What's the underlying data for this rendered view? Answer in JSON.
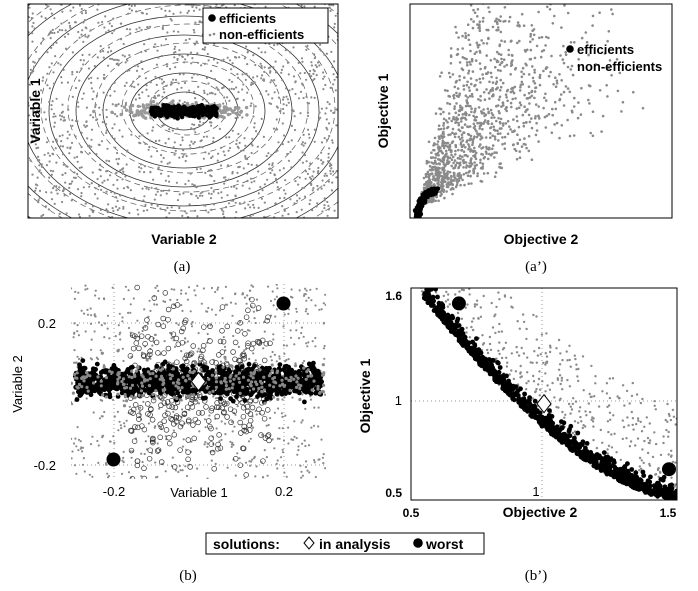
{
  "chart_data": [
    {
      "type": "scatter",
      "id": "a",
      "caption": "(a)",
      "xlabel": "Variable 2",
      "ylabel": "Variable 1",
      "legend": {
        "placement": "top-right",
        "entries": [
          "efficients",
          "non-efficients"
        ]
      },
      "contours": "concentric-ellipses",
      "series": [
        {
          "name": "efficients",
          "description": "dense horizontal band at center"
        },
        {
          "name": "non-efficients",
          "description": "uniform spread over plot area"
        }
      ]
    },
    {
      "type": "scatter",
      "id": "a_prime",
      "caption": "(a’)",
      "xlabel": "Objective 2",
      "ylabel": "Objective 1",
      "legend": {
        "placement": "top-right",
        "entries": [
          "efficients",
          "non-efficients"
        ]
      },
      "series": [
        {
          "name": "efficients",
          "description": "convex front at lower-left corner"
        },
        {
          "name": "non-efficients",
          "description": "wedge spreading up-right from the front"
        }
      ]
    },
    {
      "type": "scatter",
      "id": "b",
      "caption": "(b)",
      "xlabel": "Variable 1",
      "ylabel": "Variable 2",
      "xlim": [
        -0.3,
        0.3
      ],
      "ylim": [
        -0.25,
        0.25
      ],
      "xticks": [
        "-0.2",
        "0.2"
      ],
      "yticks": [
        "0.2",
        "-0.2"
      ],
      "grid": "dotted",
      "highlight": {
        "in_analysis": [
          [
            0,
            0
          ]
        ],
        "worst": [
          [
            -0.2,
            -0.2
          ],
          [
            0.2,
            0.2
          ]
        ]
      }
    },
    {
      "type": "scatter",
      "id": "b_prime",
      "caption": "(b’)",
      "xlabel": "Objective 2",
      "ylabel": "Objective 1",
      "xlim": [
        0.5,
        1.5
      ],
      "ylim": [
        0.5,
        1.6
      ],
      "xticks": [
        "0.5",
        "1",
        "1.5"
      ],
      "yticks": [
        "1.6",
        "1",
        "0.5"
      ],
      "grid": "dotted",
      "highlight": {
        "in_analysis": [
          [
            1.0,
            1.0
          ]
        ],
        "worst": [
          [
            0.68,
            1.52
          ],
          [
            1.47,
            0.66
          ]
        ]
      }
    }
  ],
  "solutions_legend": {
    "prefix": "solutions:",
    "in_analysis": "in analysis",
    "worst": "worst"
  }
}
